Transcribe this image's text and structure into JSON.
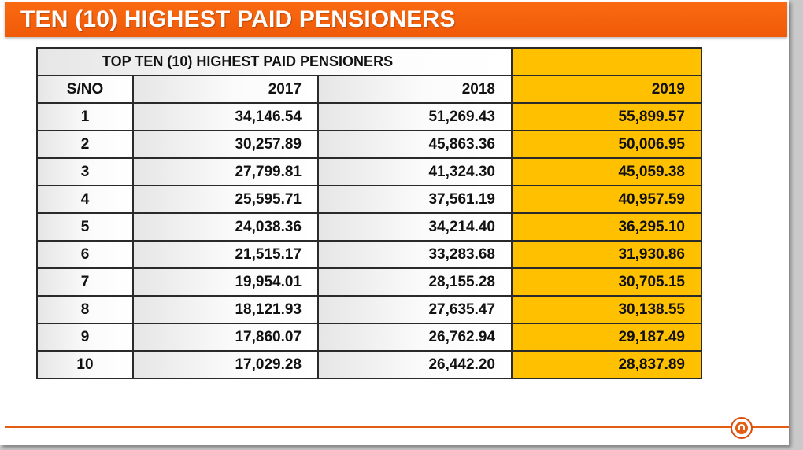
{
  "slide": {
    "title": "TEN (10) HIGHEST PAID PENSIONERS"
  },
  "table": {
    "caption": "TOP TEN (10) HIGHEST PAID PENSIONERS",
    "headers": [
      "S/NO",
      "2017",
      "2018",
      "2019"
    ],
    "rows": [
      [
        "1",
        "34,146.54",
        "51,269.43",
        "55,899.57"
      ],
      [
        "2",
        "30,257.89",
        "45,863.36",
        "50,006.95"
      ],
      [
        "3",
        "27,799.81",
        "41,324.30",
        "45,059.38"
      ],
      [
        "4",
        "25,595.71",
        "37,561.19",
        "40,957.59"
      ],
      [
        "5",
        "24,038.36",
        "34,214.40",
        "36,295.10"
      ],
      [
        "6",
        "21,515.17",
        "33,283.68",
        "31,930.86"
      ],
      [
        "7",
        "19,954.01",
        "28,155.28",
        "30,705.15"
      ],
      [
        "8",
        "18,121.93",
        "27,635.47",
        "30,138.55"
      ],
      [
        "9",
        "17,860.07",
        "26,762.94",
        "29,187.49"
      ],
      [
        "10",
        "17,029.28",
        "26,442.20",
        "28,837.89"
      ]
    ]
  },
  "colors": {
    "title_bar": "#f05b0a",
    "highlight_column": "#ffc000",
    "footer_line": "#e35d12"
  },
  "icons": {
    "logo": "organization-seal-icon"
  }
}
